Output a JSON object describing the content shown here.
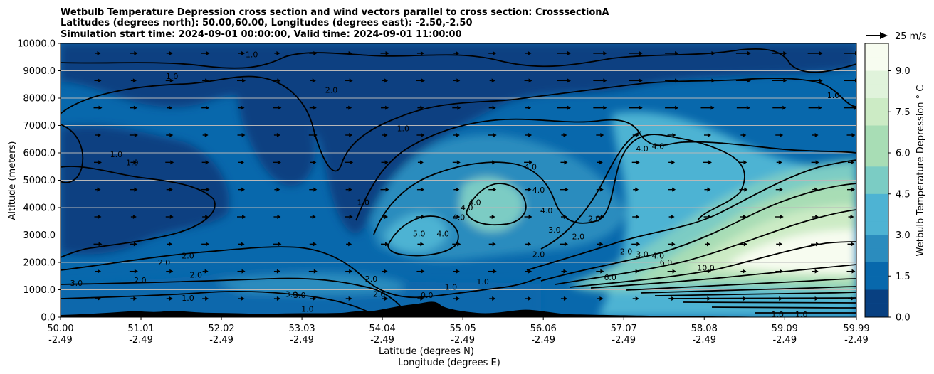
{
  "chart_data": {
    "type": "contour",
    "title": [
      "Wetbulb Temperature Depression cross section and wind vectors parallel to cross section: CrosssectionA",
      "Latitudes (degrees north): 50.00,60.00, Longitudes (degrees east): -2.50,-2.50",
      "Simulation start time: 2024-09-01 00:00:00, Valid time: 2024-09-01 11:00:00"
    ],
    "xlabel": [
      "Latitude (degrees N)",
      "Longitude (degrees E)"
    ],
    "ylabel": "Altitude (meters)",
    "xlim": [
      50.0,
      59.99
    ],
    "ylim": [
      0,
      10000
    ],
    "x_ticks": [
      50.0,
      51.01,
      52.02,
      53.03,
      54.04,
      55.05,
      56.06,
      57.07,
      58.08,
      59.09,
      59.99
    ],
    "x_tick_labels": [
      [
        "50.00",
        "-2.49"
      ],
      [
        "51.01",
        "-2.49"
      ],
      [
        "52.02",
        "-2.49"
      ],
      [
        "53.03",
        "-2.49"
      ],
      [
        "54.04",
        "-2.49"
      ],
      [
        "55.05",
        "-2.49"
      ],
      [
        "56.06",
        "-2.49"
      ],
      [
        "57.07",
        "-2.49"
      ],
      [
        "58.08",
        "-2.49"
      ],
      [
        "59.09",
        "-2.49"
      ],
      [
        "59.99",
        "-2.49"
      ]
    ],
    "y_ticks": [
      0,
      1000,
      2000,
      3000,
      4000,
      5000,
      6000,
      7000,
      8000,
      9000,
      10000
    ],
    "y_tick_labels": [
      "0.0",
      "1000.0",
      "2000.0",
      "3000.0",
      "4000.0",
      "5000.0",
      "6000.0",
      "7000.0",
      "8000.0",
      "9000.0",
      "10000.0"
    ],
    "grid": "horizontal",
    "colorbar": {
      "label": "Wetbulb Temperature Depression ° C",
      "range": [
        0,
        10
      ],
      "ticks": [
        0.0,
        1.5,
        3.0,
        4.5,
        6.0,
        7.5,
        9.0
      ],
      "tick_labels": [
        "0.0",
        "1.5",
        "3.0",
        "4.5",
        "6.0",
        "7.5",
        "9.0"
      ],
      "colors": [
        "#084081",
        "#0868ac",
        "#2b8cbe",
        "#4eb3d3",
        "#7bccc4",
        "#a8ddb5",
        "#ccebc5",
        "#e0f3db",
        "#f7fcf0"
      ]
    },
    "quiver_key": {
      "label": "25 m/s",
      "speed": 25
    },
    "contour_labels": [
      {
        "x": 50.2,
        "y": 1250,
        "text": "3.0"
      },
      {
        "x": 50.7,
        "y": 5950,
        "text": "1.0"
      },
      {
        "x": 50.9,
        "y": 5650,
        "text": "1.0"
      },
      {
        "x": 51.0,
        "y": 1350,
        "text": "2.0"
      },
      {
        "x": 51.4,
        "y": 8800,
        "text": "1.0"
      },
      {
        "x": 51.3,
        "y": 2000,
        "text": "2.0"
      },
      {
        "x": 51.6,
        "y": 2250,
        "text": "2.0"
      },
      {
        "x": 51.7,
        "y": 1550,
        "text": "2.0"
      },
      {
        "x": 51.6,
        "y": 700,
        "text": "1.0"
      },
      {
        "x": 52.4,
        "y": 9600,
        "text": "1.0"
      },
      {
        "x": 53.4,
        "y": 8300,
        "text": "2.0"
      },
      {
        "x": 52.9,
        "y": 850,
        "text": "3.0"
      },
      {
        "x": 53.0,
        "y": 800,
        "text": "3.0"
      },
      {
        "x": 53.1,
        "y": 300,
        "text": "1.0"
      },
      {
        "x": 54.3,
        "y": 6900,
        "text": "1.0"
      },
      {
        "x": 53.8,
        "y": 4200,
        "text": "1.0"
      },
      {
        "x": 54.5,
        "y": 3050,
        "text": "5.0"
      },
      {
        "x": 54.8,
        "y": 3050,
        "text": "4.0"
      },
      {
        "x": 55.0,
        "y": 3650,
        "text": "4.0"
      },
      {
        "x": 55.1,
        "y": 4000,
        "text": "4.0"
      },
      {
        "x": 55.2,
        "y": 4200,
        "text": "4.0"
      },
      {
        "x": 55.9,
        "y": 5500,
        "text": "4.0"
      },
      {
        "x": 56.0,
        "y": 4650,
        "text": "4.0"
      },
      {
        "x": 56.1,
        "y": 3900,
        "text": "4.0"
      },
      {
        "x": 56.2,
        "y": 3200,
        "text": "3.0"
      },
      {
        "x": 56.5,
        "y": 2950,
        "text": "2.0"
      },
      {
        "x": 56.7,
        "y": 3600,
        "text": "2.0"
      },
      {
        "x": 56.0,
        "y": 2300,
        "text": "2.0"
      },
      {
        "x": 53.9,
        "y": 1400,
        "text": "2.0"
      },
      {
        "x": 54.0,
        "y": 850,
        "text": "2.0"
      },
      {
        "x": 54.6,
        "y": 800,
        "text": "0.0"
      },
      {
        "x": 54.9,
        "y": 1100,
        "text": "1.0"
      },
      {
        "x": 55.3,
        "y": 1300,
        "text": "1.0"
      },
      {
        "x": 57.3,
        "y": 6150,
        "text": "4.0"
      },
      {
        "x": 57.5,
        "y": 6250,
        "text": "4.0"
      },
      {
        "x": 57.1,
        "y": 2400,
        "text": "2.0"
      },
      {
        "x": 57.3,
        "y": 2300,
        "text": "3.0"
      },
      {
        "x": 57.5,
        "y": 2250,
        "text": "4.0"
      },
      {
        "x": 57.6,
        "y": 2000,
        "text": "6.0"
      },
      {
        "x": 56.9,
        "y": 1450,
        "text": "6.0"
      },
      {
        "x": 58.1,
        "y": 1800,
        "text": "10.0"
      },
      {
        "x": 59.0,
        "y": 100,
        "text": "1.0"
      },
      {
        "x": 59.3,
        "y": 100,
        "text": "1.0"
      },
      {
        "x": 59.7,
        "y": 8100,
        "text": "1.0"
      }
    ]
  }
}
